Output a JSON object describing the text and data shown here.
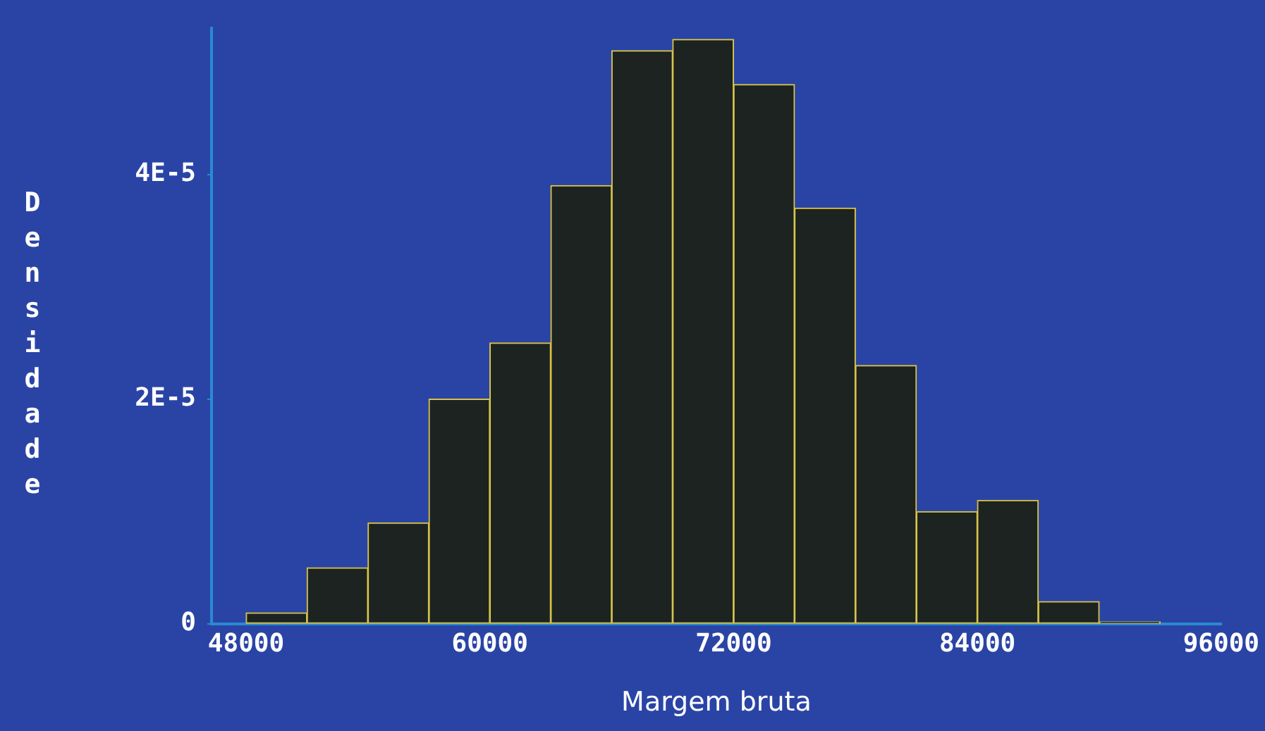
{
  "chart_data": {
    "type": "histogram",
    "xlabel": "Margem bruta",
    "ylabel": "Densidade",
    "bins": [
      48000,
      51000,
      54000,
      57000,
      60000,
      63000,
      66000,
      69000,
      72000,
      75000,
      78000,
      81000,
      84000,
      87000,
      90000,
      93000
    ],
    "values": [
      1e-06,
      5e-06,
      9e-06,
      2e-05,
      2.5e-05,
      3.9e-05,
      5.1e-05,
      5.2e-05,
      4.8e-05,
      3.7e-05,
      2.3e-05,
      1e-05,
      1.1e-05,
      2e-06,
      2e-07
    ],
    "color": "#1d2321",
    "xlim": [
      46300,
      96000
    ],
    "xticks": [
      48000,
      60000,
      72000,
      84000,
      96000
    ],
    "ylim": [
      0,
      5.3e-05
    ],
    "yticks": [
      0,
      {
        "value": 2e-05,
        "label": "2E-5"
      },
      {
        "value": 4e-05,
        "label": "4E-5"
      }
    ],
    "grid": false,
    "legend": false
  }
}
